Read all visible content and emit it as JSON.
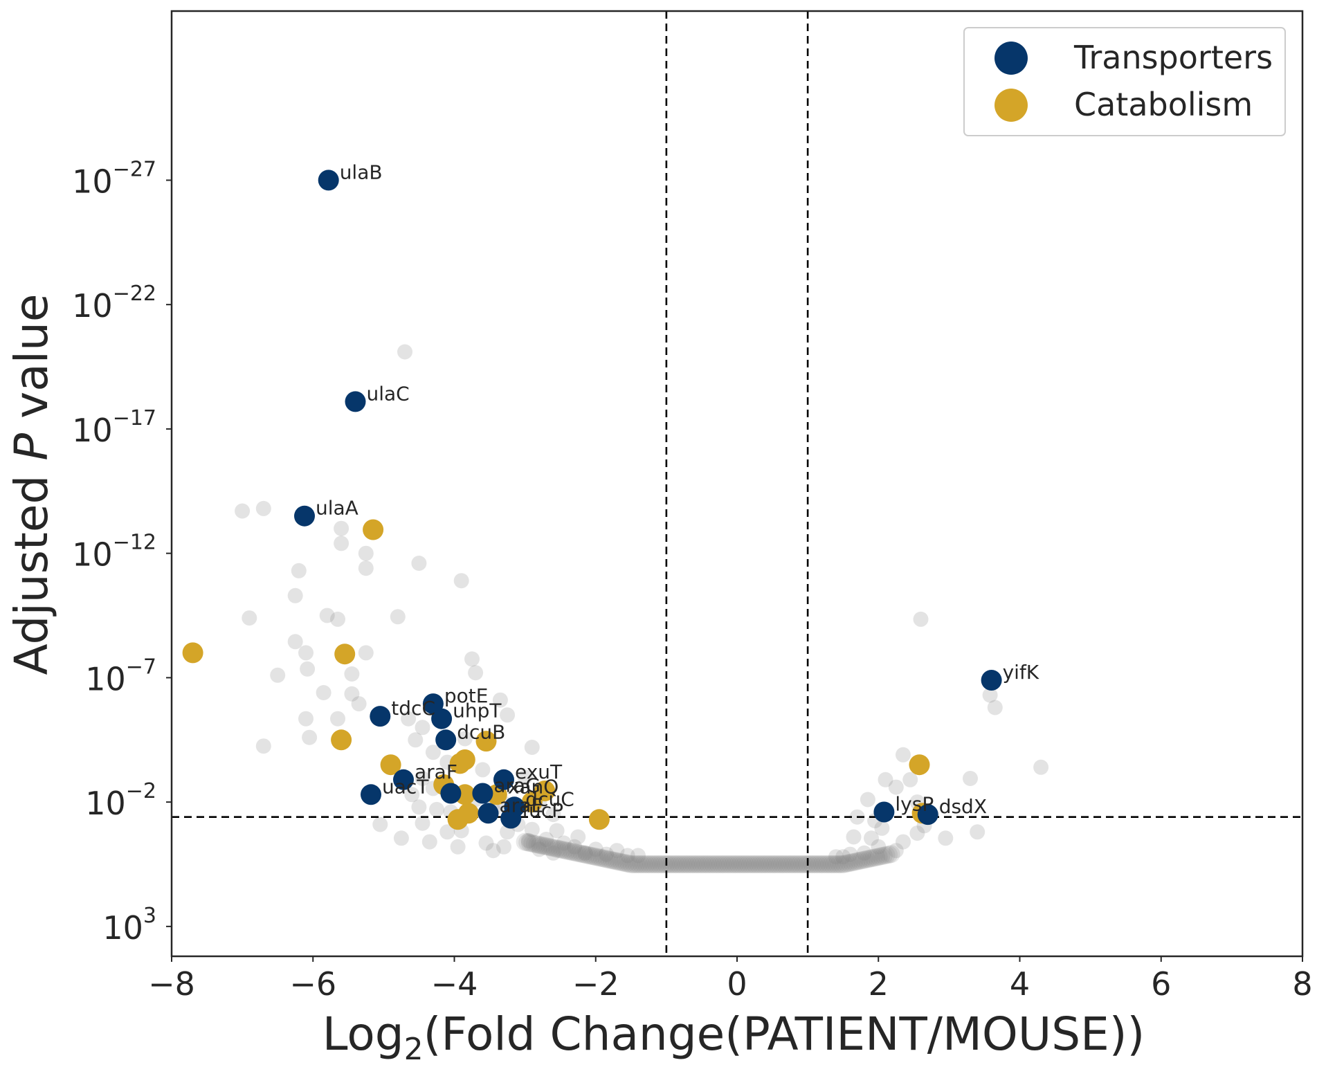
{
  "chart_data": {
    "type": "scatter",
    "xlabel": {
      "prefix": "Log",
      "sub": "2",
      "suffix": "(Fold Change(PATIENT/MOUSE))"
    },
    "ylabel": {
      "prefix": "Adjusted ",
      "italic": "P",
      "suffix": " value"
    },
    "xlim": [
      -8,
      8
    ],
    "ylim_exponent": [
      4.2,
      -33.8
    ],
    "y_scale": "log10 (inverted, labeled as powers of 10)",
    "x_ticks": [
      "−8",
      "−6",
      "−4",
      "−2",
      "0",
      "2",
      "4",
      "6",
      "8"
    ],
    "y_ticks": [
      {
        "base": "10",
        "exp": "3",
        "value": 3
      },
      {
        "base": "10",
        "exp": "−2",
        "value": -2
      },
      {
        "base": "10",
        "exp": "−7",
        "value": -7
      },
      {
        "base": "10",
        "exp": "−12",
        "value": -12
      },
      {
        "base": "10",
        "exp": "−17",
        "value": -17
      },
      {
        "base": "10",
        "exp": "−22",
        "value": -22
      },
      {
        "base": "10",
        "exp": "−27",
        "value": -27
      }
    ],
    "threshold_lines": {
      "x": [
        -1,
        1
      ],
      "y_exponent": -1.4
    },
    "grid": false,
    "legend_position": "top-right",
    "series": [
      {
        "name": "Transporters",
        "color": "#06366a",
        "points": [
          {
            "x": -5.78,
            "y": -27.0,
            "label": "ulaB"
          },
          {
            "x": -5.4,
            "y": -18.1,
            "label": "ulaC"
          },
          {
            "x": -6.12,
            "y": -13.5,
            "label": "ulaA"
          },
          {
            "x": 3.6,
            "y": -6.9,
            "label": "yifK"
          },
          {
            "x": -4.3,
            "y": -5.95,
            "label": "potE"
          },
          {
            "x": -4.18,
            "y": -5.35,
            "label": "uhpT"
          },
          {
            "x": -5.05,
            "y": -5.45,
            "label": "tdcC"
          },
          {
            "x": -4.12,
            "y": -4.5,
            "label": "dcuB"
          },
          {
            "x": -3.3,
            "y": -2.9,
            "label": "exuT"
          },
          {
            "x": -4.72,
            "y": -2.9,
            "label": "araF"
          },
          {
            "x": -5.18,
            "y": -2.3,
            "label": "uacT"
          },
          {
            "x": -4.05,
            "y": -2.35,
            "label": ""
          },
          {
            "x": -3.6,
            "y": -2.35,
            "label": "araG"
          },
          {
            "x": -3.15,
            "y": -1.8,
            "label": "dcuC"
          },
          {
            "x": -3.52,
            "y": -1.55,
            "label": "araE"
          },
          {
            "x": -3.2,
            "y": -1.35,
            "label": "fucP"
          },
          {
            "x": 2.08,
            "y": -1.6,
            "label": "lysP"
          },
          {
            "x": 2.7,
            "y": -1.5,
            "label": "dsdX"
          }
        ]
      },
      {
        "name": "Catabolism",
        "color": "#d4a528",
        "points": [
          {
            "x": -5.15,
            "y": -12.95,
            "label": ""
          },
          {
            "x": -7.7,
            "y": -8.0,
            "label": ""
          },
          {
            "x": -5.55,
            "y": -7.95,
            "label": ""
          },
          {
            "x": -5.6,
            "y": -4.5,
            "label": ""
          },
          {
            "x": -4.9,
            "y": -3.5,
            "label": ""
          },
          {
            "x": -3.85,
            "y": -3.7,
            "label": ""
          },
          {
            "x": -3.55,
            "y": -4.45,
            "label": ""
          },
          {
            "x": -4.15,
            "y": -2.7,
            "label": ""
          },
          {
            "x": -3.92,
            "y": -3.55,
            "label": ""
          },
          {
            "x": -3.4,
            "y": -2.3,
            "label": "xanQ"
          },
          {
            "x": -3.85,
            "y": -2.3,
            "label": ""
          },
          {
            "x": -2.72,
            "y": -2.45,
            "label": ""
          },
          {
            "x": -2.9,
            "y": -2.0,
            "label": ""
          },
          {
            "x": -3.8,
            "y": -1.55,
            "label": ""
          },
          {
            "x": -3.95,
            "y": -1.3,
            "label": ""
          },
          {
            "x": -1.95,
            "y": -1.3,
            "label": ""
          },
          {
            "x": 2.58,
            "y": -3.5,
            "label": ""
          },
          {
            "x": 2.62,
            "y": -1.55,
            "label": ""
          }
        ]
      }
    ],
    "background_points": {
      "color": "#808080",
      "points": [
        [
          -4.7,
          -20.1
        ],
        [
          -6.7,
          -13.8
        ],
        [
          -7.0,
          -13.7
        ],
        [
          -6.15,
          -13.5
        ],
        [
          -5.6,
          -13.0
        ],
        [
          -5.6,
          -12.4
        ],
        [
          -5.25,
          -12.0
        ],
        [
          -5.25,
          -11.4
        ],
        [
          -4.5,
          -11.6
        ],
        [
          -6.2,
          -11.3
        ],
        [
          -3.9,
          -10.9
        ],
        [
          -6.25,
          -10.3
        ],
        [
          -6.9,
          -9.4
        ],
        [
          -5.8,
          -9.5
        ],
        [
          -5.65,
          -9.35
        ],
        [
          -4.8,
          -9.45
        ],
        [
          -6.25,
          -8.45
        ],
        [
          -6.1,
          -8.0
        ],
        [
          -5.25,
          -8.0
        ],
        [
          -3.75,
          -7.75
        ],
        [
          -6.08,
          -7.35
        ],
        [
          -5.45,
          -7.15
        ],
        [
          -5.45,
          -6.35
        ],
        [
          -6.5,
          -7.1
        ],
        [
          -3.7,
          -7.2
        ],
        [
          -5.85,
          -6.4
        ],
        [
          -3.35,
          -6.1
        ],
        [
          -5.35,
          -5.95
        ],
        [
          -3.25,
          -5.5
        ],
        [
          -6.1,
          -5.35
        ],
        [
          -5.65,
          -5.35
        ],
        [
          -4.65,
          -5.35
        ],
        [
          -4.45,
          -5.0
        ],
        [
          -6.05,
          -4.6
        ],
        [
          -4.55,
          -4.5
        ],
        [
          -6.7,
          -4.25
        ],
        [
          -4.3,
          -4.0
        ],
        [
          -3.85,
          -4.55
        ],
        [
          -2.9,
          -4.2
        ],
        [
          -4.1,
          -3.6
        ],
        [
          -3.6,
          -3.3
        ],
        [
          -3.0,
          -3.0
        ],
        [
          -4.45,
          -2.95
        ],
        [
          -4.3,
          -2.55
        ],
        [
          -3.7,
          -2.1
        ],
        [
          -2.8,
          -1.95
        ],
        [
          -4.5,
          -1.8
        ],
        [
          -4.25,
          -1.7
        ],
        [
          -3.45,
          -1.7
        ],
        [
          -2.6,
          -1.5
        ],
        [
          -5.05,
          -1.1
        ],
        [
          -4.75,
          -0.55
        ],
        [
          -4.45,
          -1.15
        ],
        [
          -4.1,
          -0.8
        ],
        [
          -3.95,
          -0.2
        ],
        [
          -3.55,
          -0.35
        ],
        [
          -3.45,
          -0.05
        ],
        [
          -2.95,
          -0.45
        ],
        [
          -2.8,
          -0.1
        ],
        [
          -2.7,
          -0.5
        ],
        [
          -2.6,
          0.05
        ],
        [
          -2.45,
          -0.35
        ],
        [
          -2.3,
          -0.2
        ],
        [
          -2.15,
          0.05
        ],
        [
          -2.0,
          -0.1
        ],
        [
          -1.85,
          0.1
        ],
        [
          -1.7,
          -0.05
        ],
        [
          -1.55,
          0.15
        ],
        [
          -1.4,
          0.15
        ],
        [
          -2.9,
          -0.9
        ],
        [
          -3.1,
          -1.1
        ],
        [
          -3.25,
          -0.8
        ],
        [
          -2.55,
          -0.85
        ],
        [
          -2.25,
          -0.6
        ],
        [
          -4.35,
          -0.4
        ],
        [
          -3.9,
          -0.85
        ],
        [
          -3.3,
          -0.2
        ],
        [
          -4.05,
          -1.6
        ],
        [
          -3.3,
          -1.95
        ],
        [
          -4.6,
          -2.3
        ],
        [
          2.6,
          -9.35
        ],
        [
          3.65,
          -5.8
        ],
        [
          3.58,
          -6.3
        ],
        [
          4.3,
          -3.4
        ],
        [
          2.35,
          -3.9
        ],
        [
          2.45,
          -2.9
        ],
        [
          3.3,
          -2.95
        ],
        [
          2.1,
          -2.9
        ],
        [
          2.25,
          -2.6
        ],
        [
          1.85,
          -2.1
        ],
        [
          2.55,
          -2.0
        ],
        [
          2.75,
          -1.5
        ],
        [
          1.7,
          -1.4
        ],
        [
          1.65,
          -0.6
        ],
        [
          1.9,
          -0.55
        ],
        [
          2.05,
          -0.95
        ],
        [
          2.35,
          -0.4
        ],
        [
          2.55,
          -0.75
        ],
        [
          2.95,
          -0.55
        ],
        [
          3.4,
          -0.8
        ],
        [
          2.65,
          -1.05
        ],
        [
          2.25,
          -0.05
        ],
        [
          2.0,
          -0.2
        ],
        [
          1.8,
          0.05
        ],
        [
          1.6,
          0.1
        ],
        [
          1.5,
          0.2
        ],
        [
          1.4,
          0.2
        ],
        [
          2.1,
          -1.5
        ],
        [
          1.95,
          -1.25
        ]
      ]
    },
    "dense_band": {
      "color": "#808080",
      "description": "Many overlapping non-significant genes",
      "x_range": [
        -3.0,
        2.2
      ],
      "y_exponent": 0.5
    }
  }
}
